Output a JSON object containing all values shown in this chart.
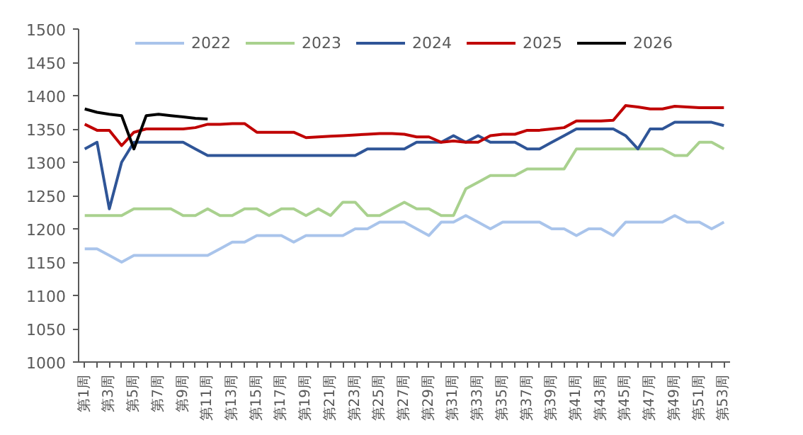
{
  "chart_data": {
    "type": "line",
    "categories": [
      "第1周",
      null,
      "第3周",
      null,
      "第5周",
      null,
      "第7周",
      null,
      "第9周",
      null,
      "第11周",
      null,
      "第13周",
      null,
      "第15周",
      null,
      "第17周",
      null,
      "第19周",
      null,
      "第21周",
      null,
      "第23周",
      null,
      "第25周",
      null,
      "第27周",
      null,
      "第29周",
      null,
      "第31周",
      null,
      "第33周",
      null,
      "第35周",
      null,
      "第37周",
      null,
      "第39周",
      null,
      "第41周",
      null,
      "第43周",
      null,
      "第45周",
      null,
      "第47周",
      null,
      "第49周",
      null,
      "第51周",
      null,
      "第53周"
    ],
    "series": [
      {
        "name": "2022",
        "color": "#a9c4eb",
        "values": [
          1170,
          1170,
          1160,
          1150,
          1160,
          1160,
          1160,
          1160,
          1160,
          1160,
          1160,
          1170,
          1180,
          1180,
          1190,
          1190,
          1190,
          1180,
          1190,
          1190,
          1190,
          1190,
          1200,
          1200,
          1210,
          1210,
          1210,
          1200,
          1190,
          1210,
          1210,
          1220,
          1210,
          1200,
          1210,
          1210,
          1210,
          1210,
          1200,
          1200,
          1190,
          1200,
          1200,
          1190,
          1210,
          1210,
          1210,
          1210,
          1220,
          1210,
          1210,
          1200,
          1210
        ]
      },
      {
        "name": "2023",
        "color": "#a9d18e",
        "values": [
          1220,
          1220,
          1220,
          1220,
          1230,
          1230,
          1230,
          1230,
          1220,
          1220,
          1230,
          1220,
          1220,
          1230,
          1230,
          1220,
          1230,
          1230,
          1220,
          1230,
          1220,
          1240,
          1240,
          1220,
          1220,
          1230,
          1240,
          1230,
          1230,
          1220,
          1220,
          1260,
          1270,
          1280,
          1280,
          1280,
          1290,
          1290,
          1290,
          1290,
          1320,
          1320,
          1320,
          1320,
          1320,
          1320,
          1320,
          1320,
          1310,
          1310,
          1330,
          1330,
          1320
        ]
      },
      {
        "name": "2024",
        "color": "#2f5597",
        "values": [
          1320,
          1330,
          1230,
          1300,
          1330,
          1330,
          1330,
          1330,
          1330,
          1320,
          1310,
          1310,
          1310,
          1310,
          1310,
          1310,
          1310,
          1310,
          1310,
          1310,
          1310,
          1310,
          1310,
          1320,
          1320,
          1320,
          1320,
          1330,
          1330,
          1330,
          1340,
          1330,
          1340,
          1330,
          1330,
          1330,
          1320,
          1320,
          1330,
          1340,
          1350,
          1350,
          1350,
          1350,
          1340,
          1320,
          1350,
          1350,
          1360,
          1360,
          1360,
          1360,
          1355
        ]
      },
      {
        "name": "2025",
        "color": "#c00000",
        "values": [
          1357,
          1348,
          1348,
          1325,
          1345,
          1350,
          1350,
          1350,
          1350,
          1352,
          1357,
          1357,
          1358,
          1358,
          1345,
          1345,
          1345,
          1345,
          1337,
          1338,
          1339,
          1340,
          1341,
          1342,
          1343,
          1343,
          1342,
          1338,
          1338,
          1330,
          1332,
          1330,
          1330,
          1340,
          1342,
          1342,
          1348,
          1348,
          1350,
          1352,
          1362,
          1362,
          1362,
          1363,
          1385,
          1383,
          1380,
          1380,
          1384,
          1383,
          1382,
          1382,
          1382
        ]
      },
      {
        "name": "2026",
        "color": "#000000",
        "values": [
          1380,
          1375,
          1372,
          1370,
          1320,
          1370,
          1372,
          1370,
          1368,
          1366,
          1365,
          null,
          null,
          null,
          null,
          null,
          null,
          null,
          null,
          null,
          null,
          null,
          null,
          null,
          null,
          null,
          null,
          null,
          null,
          null,
          null,
          null,
          null,
          null,
          null,
          null,
          null,
          null,
          null,
          null,
          null,
          null,
          null,
          null,
          null,
          null,
          null,
          null,
          null,
          null,
          null,
          null,
          null
        ]
      }
    ],
    "ylim": [
      1000,
      1500
    ],
    "yticks": [
      1000,
      1050,
      1100,
      1150,
      1200,
      1250,
      1300,
      1350,
      1400,
      1450,
      1500
    ],
    "grid": false,
    "legend": "top",
    "line_style": "solid",
    "marker": "none"
  }
}
